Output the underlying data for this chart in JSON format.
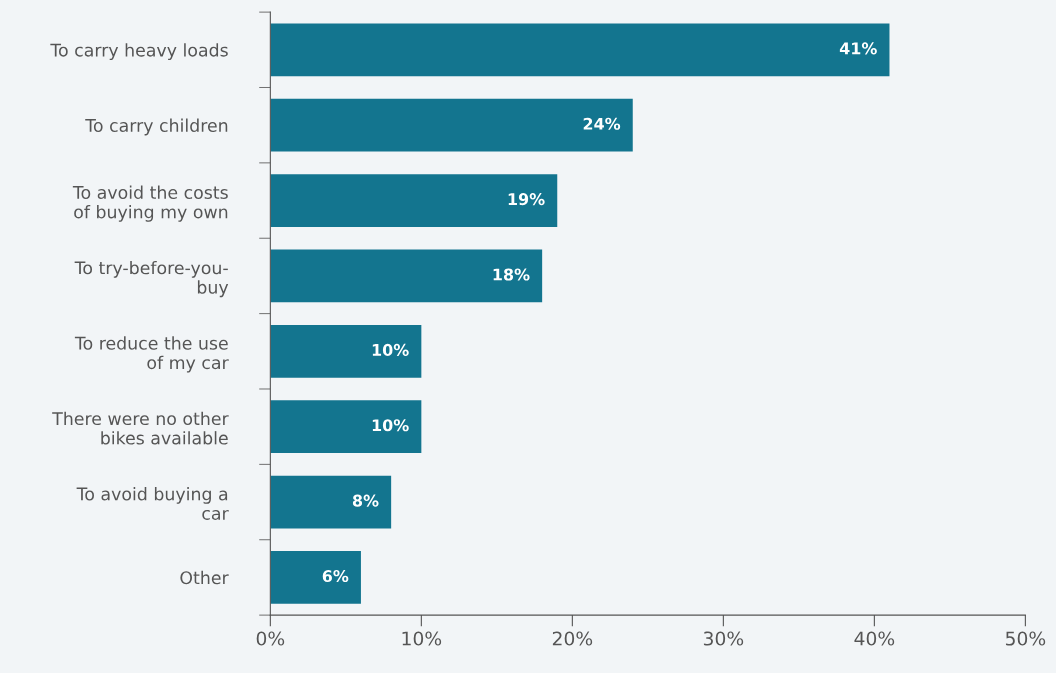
{
  "chart_data": {
    "type": "bar",
    "orientation": "horizontal",
    "categories": [
      "To carry heavy loads",
      "To carry children",
      "To avoid the costs\nof buying my own",
      "To try-before-you-\nbuy",
      "To reduce the use\nof my car",
      "There were no other\nbikes available",
      "To avoid buying a\ncar",
      "Other"
    ],
    "values": [
      41,
      24,
      19,
      18,
      10,
      10,
      8,
      6
    ],
    "value_labels": [
      "41%",
      "24%",
      "19%",
      "18%",
      "10%",
      "10%",
      "8%",
      "6%"
    ],
    "color": "#13758f",
    "xlim": [
      0,
      50
    ],
    "xticks": [
      {
        "value": 0,
        "label": "0%"
      },
      {
        "value": 10,
        "label": "10%"
      },
      {
        "value": 20,
        "label": "20%"
      },
      {
        "value": 30,
        "label": "30%"
      },
      {
        "value": 40,
        "label": "40%"
      },
      {
        "value": 50,
        "label": "50%"
      }
    ],
    "grid": false,
    "legend": false
  }
}
